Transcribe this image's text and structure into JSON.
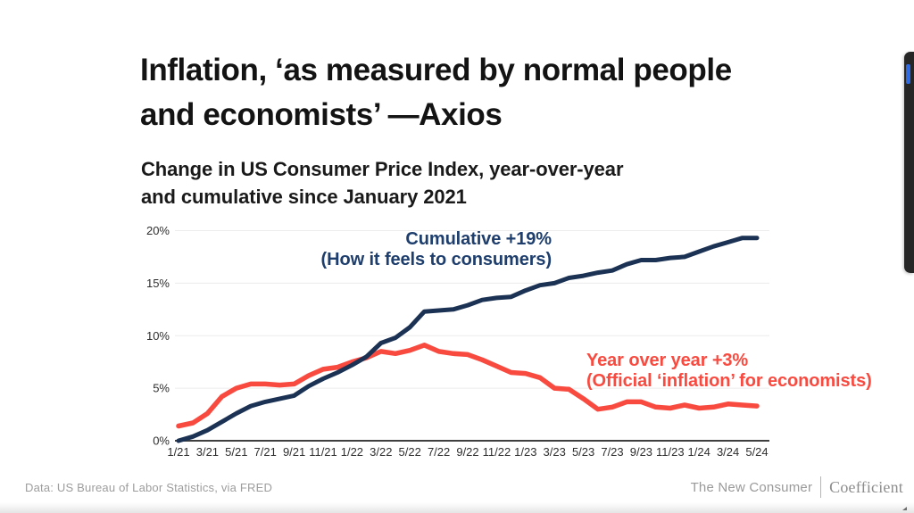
{
  "slide": {
    "title_line1": "Inflation, ‘as measured by normal people",
    "title_line2": "and economists’ —Axios",
    "subtitle_line1": "Change in US Consumer Price Index, year-over-year",
    "subtitle_line2": "and cumulative since January 2021"
  },
  "chart_data": {
    "type": "line",
    "x": [
      "1/21",
      "2/21",
      "3/21",
      "4/21",
      "5/21",
      "6/21",
      "7/21",
      "8/21",
      "9/21",
      "10/21",
      "11/21",
      "12/21",
      "1/22",
      "2/22",
      "3/22",
      "4/22",
      "5/22",
      "6/22",
      "7/22",
      "8/22",
      "9/22",
      "10/22",
      "11/22",
      "12/22",
      "1/23",
      "2/23",
      "3/23",
      "4/23",
      "5/23",
      "6/23",
      "7/23",
      "8/23",
      "9/23",
      "10/23",
      "11/23",
      "12/23",
      "1/24",
      "2/24",
      "3/24",
      "4/24",
      "5/24"
    ],
    "x_axis_label_every": 2,
    "ylim": [
      0,
      20
    ],
    "yticks": [
      0,
      5,
      10,
      15,
      20
    ],
    "ytick_suffix": "%",
    "grid": "horizontal",
    "colors": {
      "grid": "#ececec",
      "axis": "#3f3f3f",
      "tick_text": "#2e2e2e"
    },
    "series": [
      {
        "name": "Cumulative since January 2021",
        "color": "#1b3254",
        "width": 5,
        "values": [
          0,
          0.4,
          1.0,
          1.8,
          2.6,
          3.3,
          3.7,
          4.0,
          4.3,
          5.2,
          5.9,
          6.5,
          7.2,
          8.0,
          9.3,
          9.8,
          10.8,
          12.3,
          12.4,
          12.5,
          12.9,
          13.4,
          13.6,
          13.7,
          14.3,
          14.8,
          15.0,
          15.5,
          15.7,
          16.0,
          16.2,
          16.8,
          17.2,
          17.2,
          17.4,
          17.5,
          18.0,
          18.5,
          18.9,
          19.3,
          19.3
        ]
      },
      {
        "name": "Year over year",
        "color": "#f94a40",
        "width": 5.5,
        "values": [
          1.4,
          1.7,
          2.6,
          4.2,
          5.0,
          5.4,
          5.4,
          5.3,
          5.4,
          6.2,
          6.8,
          7.0,
          7.5,
          7.9,
          8.5,
          8.3,
          8.6,
          9.1,
          8.5,
          8.3,
          8.2,
          7.7,
          7.1,
          6.5,
          6.4,
          6.0,
          5.0,
          4.9,
          4.0,
          3.0,
          3.2,
          3.7,
          3.7,
          3.2,
          3.1,
          3.4,
          3.1,
          3.2,
          3.5,
          3.4,
          3.3
        ]
      }
    ],
    "annotations": [
      {
        "text_line1": "Cumulative +19%",
        "text_line2": "(How it feels to consumers)",
        "color": "#1e3e6d",
        "align": "right"
      },
      {
        "text_line1": "Year over year +3%",
        "text_line2": "(Official ‘inflation’ for economists)",
        "color": "#f94a40",
        "align": "left"
      }
    ]
  },
  "footer": {
    "source": "Data: US Bureau of Labor Statistics, via FRED",
    "brand_left": "The New Consumer",
    "brand_right": "Coefficient"
  }
}
